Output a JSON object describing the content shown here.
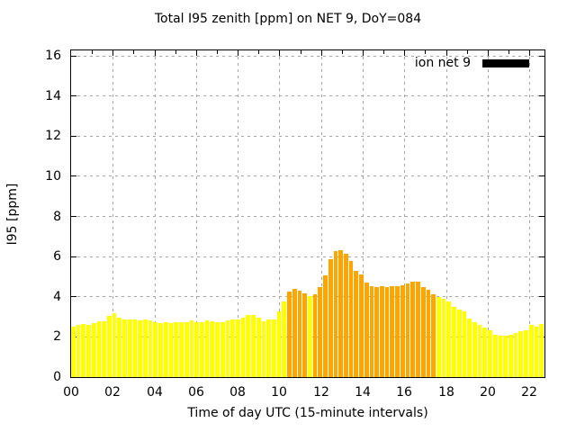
{
  "title": "Total I95 zenith [ppm] on NET 9, DoY=084",
  "legend": {
    "label": "ion net 9",
    "swatch_color": "#000000"
  },
  "axes": {
    "ylabel": "I95 [ppm]",
    "xlabel": "Time of day UTC (15-minute intervals)",
    "y_tick_labels": [
      "0",
      "2",
      "4",
      "6",
      "8",
      "10",
      "12",
      "14",
      "16"
    ],
    "y_tick_step": 2,
    "x_tick_labels": [
      "00",
      "02",
      "04",
      "06",
      "08",
      "10",
      "12",
      "14",
      "16",
      "18",
      "20",
      "22"
    ],
    "x_tick_step_hours": 2
  },
  "colors": {
    "yellow": "#ffff00",
    "orange": "#ffa500",
    "grid": "#a6a6a6",
    "border": "#000000",
    "background": "#ffffff",
    "legend_swatch": "#000000"
  },
  "chart_data": {
    "type": "bar",
    "title": "Total I95 zenith [ppm] on NET 9, DoY=084",
    "xlabel": "Time of day UTC (15-minute intervals)",
    "ylabel": "I95 [ppm]",
    "ylim": [
      0,
      16
    ],
    "interval_minutes": 15,
    "grid": true,
    "legend_position": "top-right-inside",
    "legend": [
      {
        "name": "ion net 9",
        "color": "#000000"
      }
    ],
    "times": [
      "00:00",
      "00:15",
      "00:30",
      "00:45",
      "01:00",
      "01:15",
      "01:30",
      "01:45",
      "02:00",
      "02:15",
      "02:30",
      "02:45",
      "03:00",
      "03:15",
      "03:30",
      "03:45",
      "04:00",
      "04:15",
      "04:30",
      "04:45",
      "05:00",
      "05:15",
      "05:30",
      "05:45",
      "06:00",
      "06:15",
      "06:30",
      "06:45",
      "07:00",
      "07:15",
      "07:30",
      "07:45",
      "08:00",
      "08:15",
      "08:30",
      "08:45",
      "09:00",
      "09:15",
      "09:30",
      "09:45",
      "10:00",
      "10:15",
      "10:30",
      "10:45",
      "11:00",
      "11:15",
      "11:30",
      "11:45",
      "12:00",
      "12:15",
      "12:30",
      "12:45",
      "13:00",
      "13:15",
      "13:30",
      "13:45",
      "14:00",
      "14:15",
      "14:30",
      "14:45",
      "15:00",
      "15:15",
      "15:30",
      "15:45",
      "16:00",
      "16:15",
      "16:30",
      "16:45",
      "17:00",
      "17:15",
      "17:30",
      "17:45",
      "18:00",
      "18:15",
      "18:30",
      "18:45",
      "19:00",
      "19:15",
      "19:30",
      "19:45",
      "20:00",
      "20:15",
      "20:30",
      "20:45",
      "21:00",
      "21:15",
      "21:30",
      "21:45",
      "22:00",
      "22:15",
      "22:30",
      "22:45"
    ],
    "values": [
      2.5,
      2.6,
      2.65,
      2.6,
      2.68,
      2.78,
      2.78,
      3.05,
      3.17,
      2.98,
      2.86,
      2.86,
      2.86,
      2.81,
      2.86,
      2.81,
      2.72,
      2.68,
      2.72,
      2.68,
      2.72,
      2.75,
      2.75,
      2.81,
      2.72,
      2.72,
      2.83,
      2.78,
      2.72,
      2.72,
      2.83,
      2.89,
      2.89,
      2.98,
      3.08,
      3.08,
      2.98,
      2.8,
      2.85,
      2.86,
      3.25,
      3.77,
      4.25,
      4.39,
      4.3,
      4.18,
      4.02,
      4.12,
      4.5,
      5.05,
      5.85,
      6.28,
      6.3,
      6.15,
      5.8,
      5.28,
      5.09,
      4.69,
      4.54,
      4.46,
      4.51,
      4.46,
      4.51,
      4.54,
      4.55,
      4.66,
      4.73,
      4.76,
      4.46,
      4.34,
      4.12,
      3.97,
      3.91,
      3.76,
      3.5,
      3.38,
      3.27,
      2.9,
      2.75,
      2.6,
      2.46,
      2.31,
      2.11,
      2.08,
      2.05,
      2.11,
      2.19,
      2.28,
      2.34,
      2.6,
      2.53,
      2.63
    ],
    "bar_color_flags": [
      "yellow",
      "yellow",
      "yellow",
      "yellow",
      "yellow",
      "yellow",
      "yellow",
      "yellow",
      "yellow",
      "yellow",
      "yellow",
      "yellow",
      "yellow",
      "yellow",
      "yellow",
      "yellow",
      "yellow",
      "yellow",
      "yellow",
      "yellow",
      "yellow",
      "yellow",
      "yellow",
      "yellow",
      "yellow",
      "yellow",
      "yellow",
      "yellow",
      "yellow",
      "yellow",
      "yellow",
      "yellow",
      "yellow",
      "yellow",
      "yellow",
      "yellow",
      "yellow",
      "yellow",
      "yellow",
      "yellow",
      "yellow",
      "yellow",
      "orange",
      "orange",
      "orange",
      "orange",
      "yellow",
      "orange",
      "orange",
      "orange",
      "orange",
      "orange",
      "orange",
      "orange",
      "orange",
      "orange",
      "orange",
      "orange",
      "orange",
      "orange",
      "orange",
      "orange",
      "orange",
      "orange",
      "orange",
      "orange",
      "orange",
      "orange",
      "orange",
      "orange",
      "orange",
      "yellow",
      "yellow",
      "yellow",
      "yellow",
      "yellow",
      "yellow",
      "yellow",
      "yellow",
      "yellow",
      "yellow",
      "yellow",
      "yellow",
      "yellow",
      "yellow",
      "yellow",
      "yellow",
      "yellow",
      "yellow",
      "yellow",
      "yellow",
      "yellow"
    ]
  }
}
